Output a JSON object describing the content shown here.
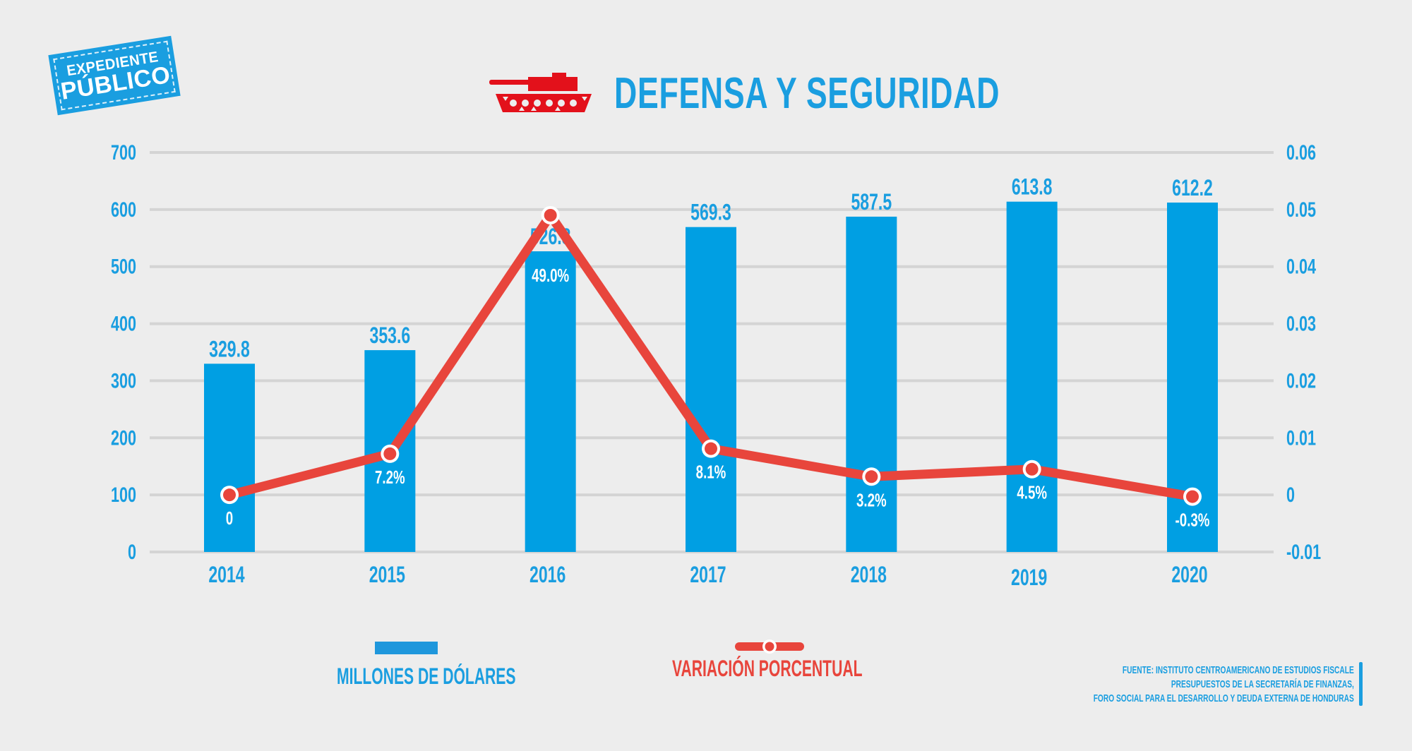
{
  "logo": {
    "line1": "EXPEDIENTE",
    "line2": "PÚBLICO"
  },
  "header": {
    "icon": "tank-icon",
    "title": "DEFENSA Y SEGURIDAD"
  },
  "colors": {
    "bar": "#009fe3",
    "line": "#e8453c",
    "text_blue": "#1a9ee0",
    "grid": "#d4d4d4",
    "background": "#ededed"
  },
  "legend": {
    "bar_label": "MILLONES DE DÓLARES",
    "line_label": "VARIACIÓN PORCENTUAL"
  },
  "source": {
    "lines": [
      "FUENTE: INSTITUTO CENTROAMERICANO DE ESTUDIOS FISCALE",
      "PRESUPUESTOS DE LA SECRETARÍA DE FINANZAS,",
      "FORO SOCIAL PARA EL DESARROLLO Y DEUDA EXTERNA DE HONDURAS"
    ]
  },
  "chart_data": {
    "type": "bar",
    "title": "DEFENSA Y SEGURIDAD",
    "categories": [
      "2014",
      "2015",
      "2016",
      "2017",
      "2018",
      "2019",
      "2020"
    ],
    "grid": true,
    "legend_position": "bottom",
    "left_axis": {
      "label": "MILLONES DE DÓLARES",
      "range": [
        0,
        700
      ],
      "ticks": [
        "0",
        "100",
        "200",
        "300",
        "400",
        "500",
        "600",
        "700"
      ]
    },
    "right_axis": {
      "label": "VARIACIÓN PORCENTUAL",
      "range": [
        -0.01,
        0.06
      ],
      "ticks": [
        "-0.01",
        "0",
        "0.01",
        "0.02",
        "0.03",
        "0.04",
        "0.05",
        "0.06"
      ]
    },
    "series": [
      {
        "name": "MILLONES DE DÓLARES",
        "type": "bar",
        "axis": "left",
        "values": [
          329.8,
          353.6,
          526.8,
          569.3,
          587.5,
          613.8,
          612.2
        ],
        "labels": [
          "329.8",
          "353.6",
          "526.8",
          "569.3",
          "587.5",
          "613.8",
          "612.2"
        ]
      },
      {
        "name": "VARIACIÓN PORCENTUAL",
        "type": "line",
        "axis": "right",
        "values": [
          0.0,
          0.0072,
          0.049,
          0.0081,
          0.0032,
          0.0045,
          -0.0003
        ],
        "labels": [
          "0",
          "7.2%",
          "49.0%",
          "8.1%",
          "3.2%",
          "4.5%",
          "-0.3%"
        ]
      }
    ]
  }
}
